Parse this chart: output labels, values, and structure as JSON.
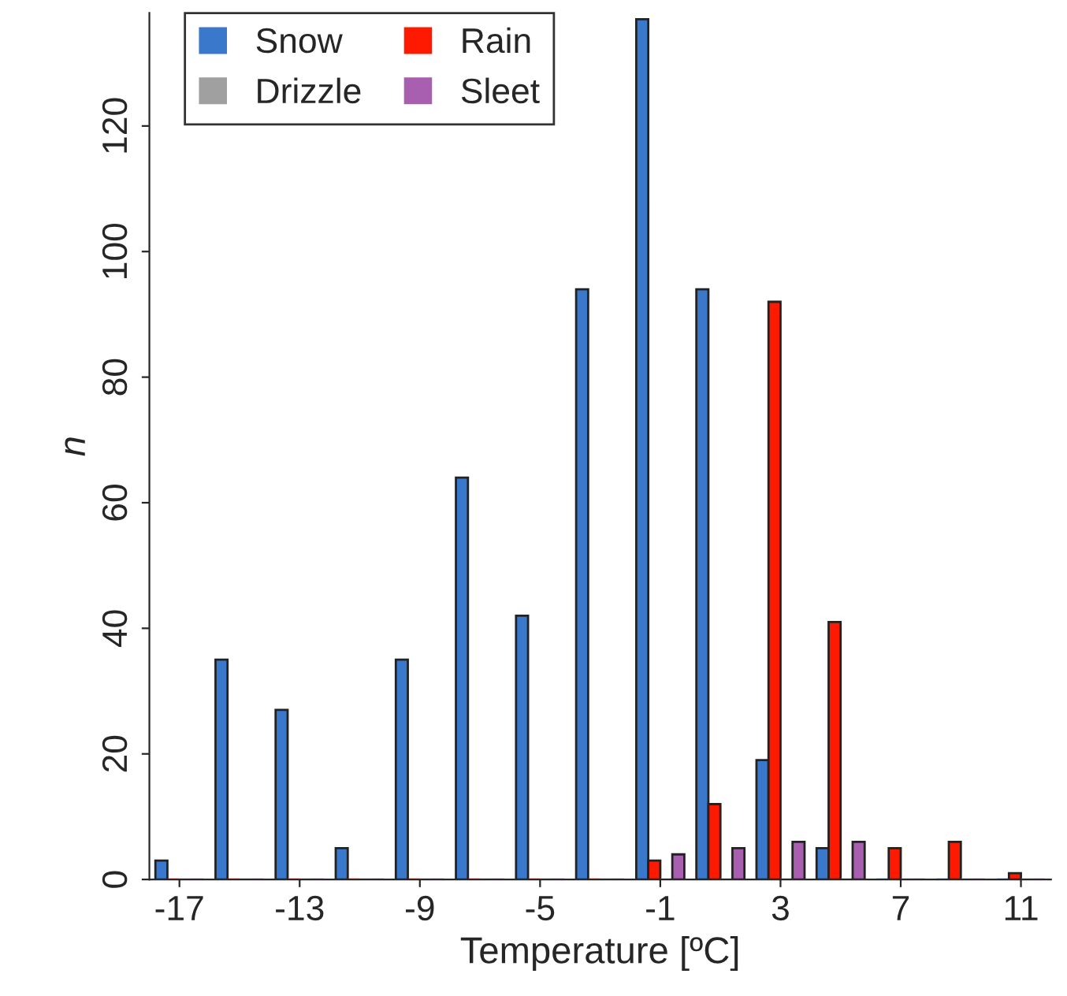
{
  "chart_data": {
    "type": "bar",
    "xlabel": "Temperature [ºC]",
    "ylabel": "n",
    "categories": [
      "-17",
      null,
      "-13",
      null,
      "-9",
      null,
      "-5",
      null,
      "-1",
      null,
      "3",
      null,
      "7",
      null,
      "11"
    ],
    "series": [
      {
        "name": "Snow",
        "color": "#3a78cc",
        "values": [
          3,
          35,
          27,
          5,
          35,
          64,
          42,
          94,
          137,
          94,
          19,
          5,
          0,
          0,
          0
        ]
      },
      {
        "name": "Rain",
        "color": "#fe1a00",
        "values": [
          0,
          0,
          0,
          0,
          0,
          0,
          0,
          0,
          3,
          12,
          92,
          41,
          5,
          6,
          1
        ]
      },
      {
        "name": "Drizzle",
        "color": "#a0a0a0",
        "values": [
          0,
          0,
          0,
          0,
          0,
          0,
          0,
          0,
          0,
          0,
          0,
          0,
          0,
          0,
          0
        ]
      },
      {
        "name": "Sleet",
        "color": "#a95fb0",
        "values": [
          0,
          0,
          0,
          0,
          0,
          0,
          0,
          0,
          4,
          5,
          6,
          6,
          0,
          0,
          0
        ]
      }
    ],
    "ylim": [
      0,
      138
    ],
    "yticks": [
      0,
      20,
      40,
      60,
      80,
      100,
      120
    ],
    "grid": false,
    "legend": "top left"
  }
}
